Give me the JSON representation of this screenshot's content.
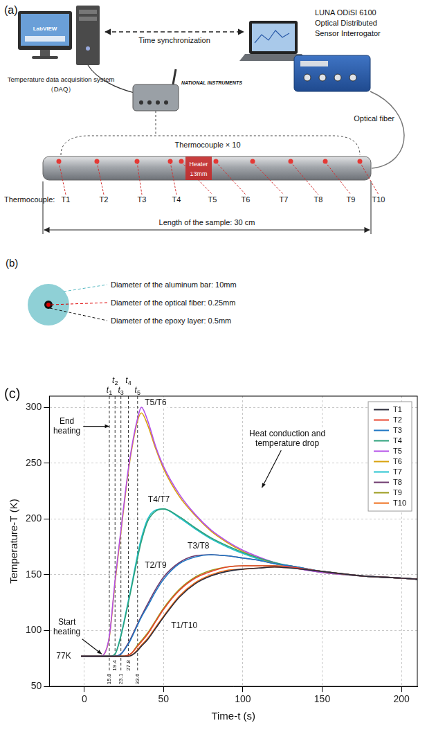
{
  "panel_a": {
    "label": "(a)",
    "computer_screen": "LabVIEW",
    "sync": "Time synchronization",
    "daq": [
      "Temperature data acquisition system",
      "（DAQ）"
    ],
    "daq_brand": "NATIONAL INSTRUMENTS",
    "interrogator": [
      "LUNA ODiSI 6100",
      "Optical Distributed",
      "Sensor Interrogator"
    ],
    "fiber": "Optical fiber",
    "thermocouples": "Thermocouple × 10",
    "heater": "Heater",
    "heater_length": "13mm",
    "thermocouple_row_title": "Thermocouple:",
    "thermocouple_labels": [
      "T1",
      "T2",
      "T3",
      "T4",
      "T5",
      "T6",
      "T7",
      "T8",
      "T9",
      "T10"
    ],
    "sample_length": "Length of the sample: 30 cm"
  },
  "panel_b": {
    "label": "(b)",
    "lines": [
      "Diameter of the aluminum bar: 10mm",
      "Diameter of the optical fiber: 0.25mm",
      "Diameter of the epoxy layer: 0.5mm"
    ]
  },
  "chart_data": {
    "panel_label": "(c)",
    "type": "line",
    "x_label": "Time-t (s)",
    "y_label": "Temperature-T (K)",
    "x": [
      -2,
      0,
      10,
      12,
      15.8,
      19.4,
      23.1,
      27.8,
      30,
      33.6,
      36,
      40,
      45,
      50,
      60,
      70,
      80,
      90,
      100,
      110,
      120,
      130,
      150,
      175,
      200,
      210
    ],
    "series": [
      {
        "name": "T1",
        "color": "#2b2b3a",
        "values": [
          77,
          77,
          77,
          77,
          77,
          77,
          77,
          77,
          78,
          82,
          86,
          92,
          102,
          112,
          130,
          142,
          149,
          153,
          155,
          156,
          157,
          156,
          153,
          149,
          147,
          146
        ]
      },
      {
        "name": "T2",
        "color": "#e8432d",
        "values": [
          77,
          77,
          77,
          77,
          77,
          77,
          77,
          78,
          80,
          86,
          90,
          97,
          108,
          119,
          136,
          147,
          153,
          157,
          158,
          158,
          158,
          157,
          153,
          149,
          147,
          146
        ]
      },
      {
        "name": "T3",
        "color": "#1f77c4",
        "values": [
          77,
          77,
          77,
          77,
          77,
          77,
          79,
          88,
          94,
          105,
          112,
          122,
          135,
          146,
          160,
          166,
          168,
          167,
          165,
          163,
          160,
          158,
          153,
          149,
          147,
          146
        ]
      },
      {
        "name": "T4",
        "color": "#2ca07a",
        "values": [
          77,
          77,
          77,
          77,
          77,
          79,
          95,
          125,
          140,
          165,
          180,
          198,
          207,
          209,
          202,
          192,
          183,
          176,
          170,
          165,
          161,
          158,
          153,
          149,
          147,
          146
        ]
      },
      {
        "name": "T5",
        "color": "#b44fe8",
        "values": [
          77,
          77,
          77,
          78,
          95,
          145,
          190,
          245,
          265,
          290,
          300,
          288,
          265,
          247,
          222,
          204,
          190,
          180,
          172,
          166,
          161,
          157,
          152,
          149,
          147,
          146
        ]
      },
      {
        "name": "T6",
        "color": "#d9a20f",
        "values": [
          77,
          77,
          77,
          78,
          94,
          143,
          188,
          243,
          263,
          288,
          295,
          284,
          263,
          245,
          220,
          203,
          189,
          179,
          171,
          165,
          160,
          157,
          152,
          149,
          147,
          146
        ]
      },
      {
        "name": "T7",
        "color": "#22c3cf",
        "values": [
          77,
          77,
          77,
          77,
          77,
          79,
          96,
          127,
          142,
          168,
          183,
          200,
          208,
          209,
          201,
          191,
          182,
          175,
          169,
          164,
          160,
          157,
          152,
          149,
          147,
          146
        ]
      },
      {
        "name": "T8",
        "color": "#6e3a6e",
        "values": [
          77,
          77,
          77,
          77,
          77,
          77,
          79,
          89,
          95,
          106,
          113,
          124,
          137,
          148,
          161,
          167,
          168,
          167,
          165,
          163,
          160,
          158,
          153,
          149,
          147,
          146
        ]
      },
      {
        "name": "T9",
        "color": "#9b9a1c",
        "values": [
          77,
          77,
          77,
          77,
          77,
          77,
          77,
          78,
          80,
          87,
          91,
          98,
          109,
          120,
          137,
          148,
          154,
          157,
          158,
          158,
          158,
          157,
          153,
          149,
          147,
          146
        ]
      },
      {
        "name": "T10",
        "color": "#ef6d1a",
        "values": [
          77,
          77,
          77,
          77,
          77,
          77,
          77,
          77,
          78,
          83,
          87,
          93,
          103,
          113,
          131,
          143,
          150,
          154,
          155,
          156,
          157,
          156,
          153,
          149,
          147,
          146
        ]
      }
    ],
    "xlim": [
      -22,
      210
    ],
    "xticks": [
      0,
      50,
      100,
      150,
      200
    ],
    "ylim": [
      50,
      310
    ],
    "yticks": [
      50,
      100,
      150,
      200,
      250,
      300
    ],
    "grid": true,
    "legend": "upper right",
    "marker": "none",
    "line_style": "solid",
    "time_markers": [
      {
        "name": "t1",
        "value": 15.8
      },
      {
        "name": "t2",
        "value": 19.4
      },
      {
        "name": "t3",
        "value": 23.1
      },
      {
        "name": "t4",
        "value": 27.8
      },
      {
        "name": "t5",
        "value": 33.6
      }
    ],
    "annotations": [
      {
        "text": [
          "T5/T6"
        ],
        "x": 45,
        "y": 304
      },
      {
        "text": [
          "End",
          "heating"
        ],
        "x": -11,
        "y": 283,
        "points_to": [
          15.8,
          283
        ]
      },
      {
        "text": [
          "Heat conduction and",
          "temperature drop"
        ],
        "x": 128,
        "y": 272,
        "points_to": [
          112,
          228
        ]
      },
      {
        "text": [
          "T4/T7"
        ],
        "x": 47,
        "y": 217
      },
      {
        "text": [
          "T3/T8"
        ],
        "x": 72,
        "y": 175.5
      },
      {
        "text": [
          "T2/T9"
        ],
        "x": 45,
        "y": 158
      },
      {
        "text": [
          "T1/T10"
        ],
        "x": 63,
        "y": 104
      },
      {
        "text": [
          "Start",
          "heating"
        ],
        "x": -11,
        "y": 103,
        "points_to": [
          11,
          79
        ]
      },
      {
        "text": [
          "77K"
        ],
        "x": -13,
        "y": 77
      }
    ]
  }
}
